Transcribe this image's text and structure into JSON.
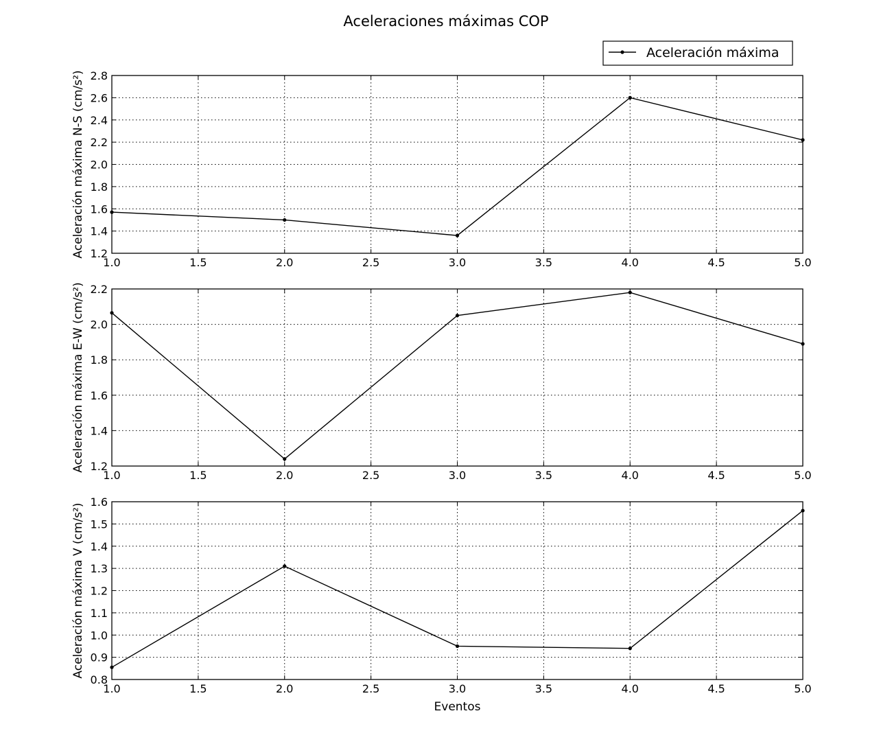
{
  "figure": {
    "title": "Aceleraciones máximas COP",
    "legend_label": "Aceleración máxima",
    "legend_placement": "top-right"
  },
  "chart_data": [
    {
      "type": "line",
      "title": "",
      "xlabel": "",
      "ylabel": "Aceleración máxima N-S (cm/s²)",
      "xlim": [
        1.0,
        5.0
      ],
      "ylim": [
        1.2,
        2.8
      ],
      "grid": true,
      "x_ticks": [
        "1.0",
        "1.5",
        "2.0",
        "2.5",
        "3.0",
        "3.5",
        "4.0",
        "4.5",
        "5.0"
      ],
      "y_ticks": [
        "1.2",
        "1.4",
        "1.6",
        "1.8",
        "2.0",
        "2.2",
        "2.4",
        "2.6",
        "2.8"
      ],
      "series": [
        {
          "name": "Aceleración máxima",
          "color": "#000000",
          "x": [
            1,
            2,
            3,
            4,
            5
          ],
          "y": [
            1.57,
            1.5,
            1.36,
            2.6,
            2.22
          ]
        }
      ]
    },
    {
      "type": "line",
      "title": "",
      "xlabel": "",
      "ylabel": "Aceleración máxima E-W (cm/s²)",
      "xlim": [
        1.0,
        5.0
      ],
      "ylim": [
        1.2,
        2.2
      ],
      "grid": true,
      "x_ticks": [
        "1.0",
        "1.5",
        "2.0",
        "2.5",
        "3.0",
        "3.5",
        "4.0",
        "4.5",
        "5.0"
      ],
      "y_ticks": [
        "1.2",
        "1.4",
        "1.6",
        "1.8",
        "2.0",
        "2.2"
      ],
      "series": [
        {
          "name": "Aceleración máxima",
          "color": "#000000",
          "x": [
            1,
            2,
            3,
            4,
            5
          ],
          "y": [
            2.065,
            1.24,
            2.05,
            2.18,
            1.89
          ]
        }
      ]
    },
    {
      "type": "line",
      "title": "",
      "xlabel": "Eventos",
      "ylabel": "Aceleración máxima V (cm/s²)",
      "xlim": [
        1.0,
        5.0
      ],
      "ylim": [
        0.8,
        1.6
      ],
      "grid": true,
      "x_ticks": [
        "1.0",
        "1.5",
        "2.0",
        "2.5",
        "3.0",
        "3.5",
        "4.0",
        "4.5",
        "5.0"
      ],
      "y_ticks": [
        "0.8",
        "0.9",
        "1.0",
        "1.1",
        "1.2",
        "1.3",
        "1.4",
        "1.5",
        "1.6"
      ],
      "series": [
        {
          "name": "Aceleración máxima",
          "color": "#000000",
          "x": [
            1,
            2,
            3,
            4,
            5
          ],
          "y": [
            0.855,
            1.31,
            0.95,
            0.94,
            1.56
          ]
        }
      ]
    }
  ]
}
